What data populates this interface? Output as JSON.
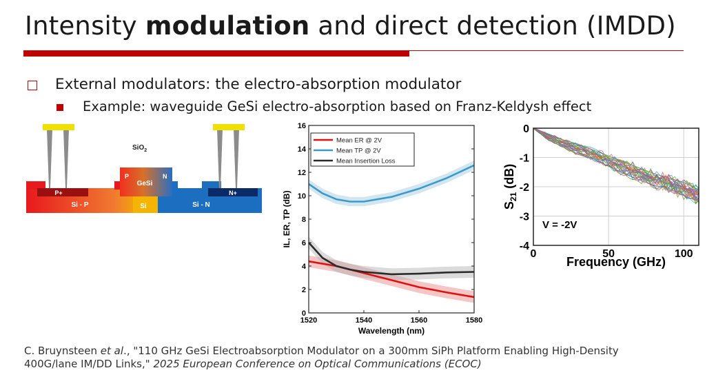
{
  "slide": {
    "title_pre": "Intensity ",
    "title_bold": "modulation",
    "title_post": " and direct detection (IMDD)",
    "bullet1": "External modulators: the electro-absorption modulator",
    "bullet2": "Example: waveguide GeSi electro-absorption based on Franz-Keldysh effect",
    "citation": {
      "author": "C. Bruynsteen ",
      "etal": "et al",
      "text": "., \"110 GHz GeSi Electroabsorption Modulator on a 300mm SiPh Platform Enabling High-Density 400G/lane IM/DD Links,\" ",
      "venue": "2025 European Conference on Optical Communications (ECOC)"
    }
  },
  "cross_section": {
    "oxide": "SiO",
    "oxide_sub": "2",
    "p_plus": "P+",
    "n_plus": "N+",
    "p": "P",
    "n": "N",
    "gesi": "GeSi",
    "si": "Si",
    "si_p": "Si - P",
    "si_n": "Si - N",
    "colors": {
      "p_region": "#e8191e",
      "n_region": "#1c6fc0",
      "si_core": "#f5b400",
      "contact": "#f0e000",
      "via": "#8c8c8c",
      "p_plus": "#9a1010",
      "n_plus": "#0c2a66"
    }
  },
  "chart_data": [
    {
      "type": "line",
      "xlabel": "Wavelength (nm)",
      "ylabel": "IL, ER, TP (dB)",
      "xlim": [
        1520,
        1580
      ],
      "ylim": [
        0,
        16
      ],
      "xticks": [
        1520,
        1540,
        1560,
        1580
      ],
      "yticks": [
        0,
        2,
        4,
        6,
        8,
        10,
        12,
        14,
        16
      ],
      "legend_position": "top-left",
      "series": [
        {
          "name": "Mean ER @ 2V",
          "color": "#e01010",
          "band_color": "#e88080",
          "x": [
            1520,
            1530,
            1540,
            1550,
            1560,
            1570,
            1580
          ],
          "y": [
            4.4,
            4.0,
            3.4,
            2.8,
            2.2,
            1.75,
            1.35
          ],
          "band": 0.5
        },
        {
          "name": "Mean TP @ 2V",
          "color": "#3d9ac8",
          "band_color": "#9cc8e0",
          "x": [
            1520,
            1525,
            1530,
            1535,
            1540,
            1550,
            1560,
            1570,
            1580
          ],
          "y": [
            11.0,
            10.2,
            9.7,
            9.5,
            9.5,
            9.9,
            10.6,
            11.5,
            12.6
          ],
          "band": 0.4
        },
        {
          "name": "Mean Insertion Loss",
          "color": "#2a2a2a",
          "band_color": "#b0b0b0",
          "x": [
            1520,
            1525,
            1530,
            1535,
            1540,
            1550,
            1560,
            1570,
            1580
          ],
          "y": [
            6.0,
            4.7,
            4.0,
            3.7,
            3.5,
            3.3,
            3.35,
            3.45,
            3.5
          ],
          "band": 0.5
        }
      ]
    },
    {
      "type": "line",
      "xlabel": "Frequency (GHz)",
      "ylabel": "S",
      "ylabel_sub": "21",
      "ylabel_unit": " (dB)",
      "annotation": "V = -2V",
      "xlim": [
        0,
        110
      ],
      "ylim": [
        -4,
        0
      ],
      "xticks": [
        0,
        50,
        100
      ],
      "yticks": [
        0,
        -1,
        -2,
        -3,
        -4
      ],
      "grid": true,
      "series": [
        {
          "x": [
            0,
            10,
            20,
            30,
            40,
            50,
            60,
            70,
            80,
            90,
            100,
            110
          ],
          "y": [
            0,
            -0.3,
            -0.5,
            -0.7,
            -0.85,
            -1.1,
            -1.3,
            -1.5,
            -1.75,
            -1.9,
            -2.0,
            -2.3
          ]
        },
        {
          "x": [
            0,
            10,
            20,
            30,
            40,
            50,
            60,
            70,
            80,
            90,
            100,
            110
          ],
          "y": [
            0,
            -0.4,
            -0.65,
            -0.9,
            -1.05,
            -1.3,
            -1.55,
            -1.75,
            -1.95,
            -2.05,
            -2.3,
            -2.5
          ]
        },
        {
          "x": [
            0,
            10,
            20,
            30,
            40,
            50,
            60,
            70,
            80,
            90,
            100,
            110
          ],
          "y": [
            0,
            -0.2,
            -0.4,
            -0.55,
            -0.75,
            -0.95,
            -1.15,
            -1.35,
            -1.55,
            -1.7,
            -1.85,
            -2.1
          ]
        }
      ]
    }
  ]
}
